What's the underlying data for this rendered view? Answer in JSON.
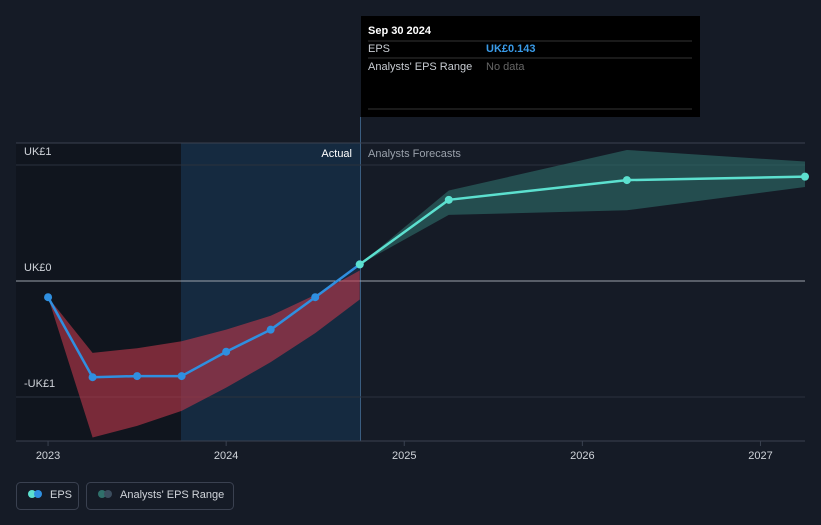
{
  "chart_data": {
    "type": "line",
    "xlim": [
      2022.82,
      2027.25
    ],
    "xticks": [
      2023,
      2024,
      2025,
      2026,
      2027
    ],
    "ylim": [
      -1.38,
      1.19
    ],
    "yticks": [
      {
        "value": -1,
        "label": "-UK£1"
      },
      {
        "value": 0,
        "label": "UK£0"
      },
      {
        "value": 1,
        "label": "UK£1"
      }
    ],
    "grid": true,
    "period_labels": [
      "Actual",
      "Analysts Forecasts"
    ],
    "series": [
      {
        "name": "EPS",
        "color": "#2f8fe0",
        "x": [
          2023.0,
          2023.25,
          2023.5,
          2023.75,
          2024.0,
          2024.25,
          2024.5,
          2024.75
        ],
        "values": [
          -0.14,
          -0.83,
          -0.82,
          -0.82,
          -0.61,
          -0.42,
          -0.14,
          0.143
        ]
      },
      {
        "color": "#5ce0cf",
        "x": [
          2024.75,
          2025.25,
          2026.25,
          2027.25
        ],
        "values": [
          0.143,
          0.7,
          0.87,
          0.9
        ]
      }
    ],
    "ranges": [
      {
        "name": "Analysts' EPS Range",
        "color": "#2f6f6a",
        "x": [
          2024.75,
          2025.25,
          2026.25,
          2027.25
        ],
        "high": [
          0.143,
          0.78,
          1.13,
          1.03
        ],
        "low": [
          0.143,
          0.57,
          0.61,
          0.81
        ]
      },
      {
        "color": "#c0394b",
        "x": [
          2023.0,
          2023.25,
          2023.5,
          2023.75,
          2024.0,
          2024.25,
          2024.5,
          2024.75
        ],
        "high": [
          -0.14,
          -0.62,
          -0.58,
          -0.52,
          -0.42,
          -0.3,
          -0.12,
          0.09
        ],
        "low": [
          -0.14,
          -1.35,
          -1.25,
          -1.12,
          -0.92,
          -0.7,
          -0.45,
          -0.16
        ]
      }
    ]
  },
  "tooltip": {
    "date": "Sep 30 2024",
    "rows": [
      {
        "label": "EPS",
        "value": "UK£0.143"
      },
      {
        "label": "Analysts' EPS Range",
        "value": "No data"
      }
    ]
  }
}
